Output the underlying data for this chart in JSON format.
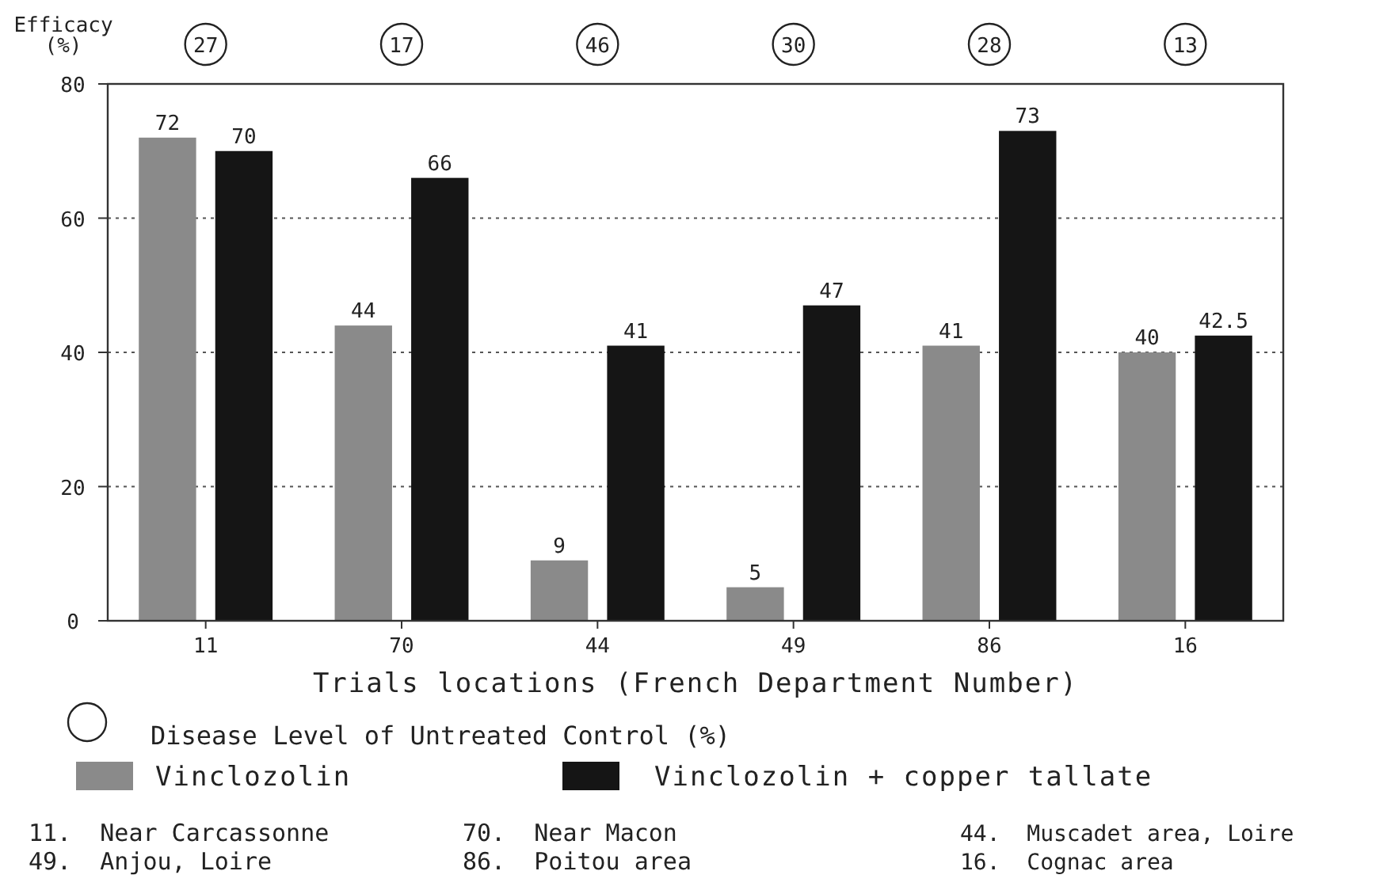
{
  "chart_data": {
    "type": "bar",
    "xlabel": "Trials locations (French Department Number)",
    "ylabel": "Efficacy\n(%)",
    "categories": [
      "11",
      "70",
      "44",
      "49",
      "86",
      "16"
    ],
    "series": [
      {
        "name": "Vinclozolin",
        "color": "#8a8a8a",
        "values": [
          72,
          44,
          9,
          5,
          41,
          40
        ]
      },
      {
        "name": "Vinclozolin + copper tallate",
        "color": "#151515",
        "values": [
          70,
          66,
          41,
          47,
          73,
          42.5
        ]
      }
    ],
    "ylim": [
      0,
      80
    ],
    "yticks": [
      0,
      20,
      40,
      60,
      80
    ],
    "grid": "y",
    "data_labels": true,
    "legend": "bottom",
    "annotations": [
      "27",
      "17",
      "46",
      "30",
      "28",
      "13",
      "Disease Level of Untreated Control (%)",
      "11.  Near Carcassonne",
      "70.  Near Macon",
      "44.  Muscadet area, Loire",
      "49.  Anjou, Loire",
      "86.  Poitou area",
      "16.  Cognac area"
    ]
  }
}
